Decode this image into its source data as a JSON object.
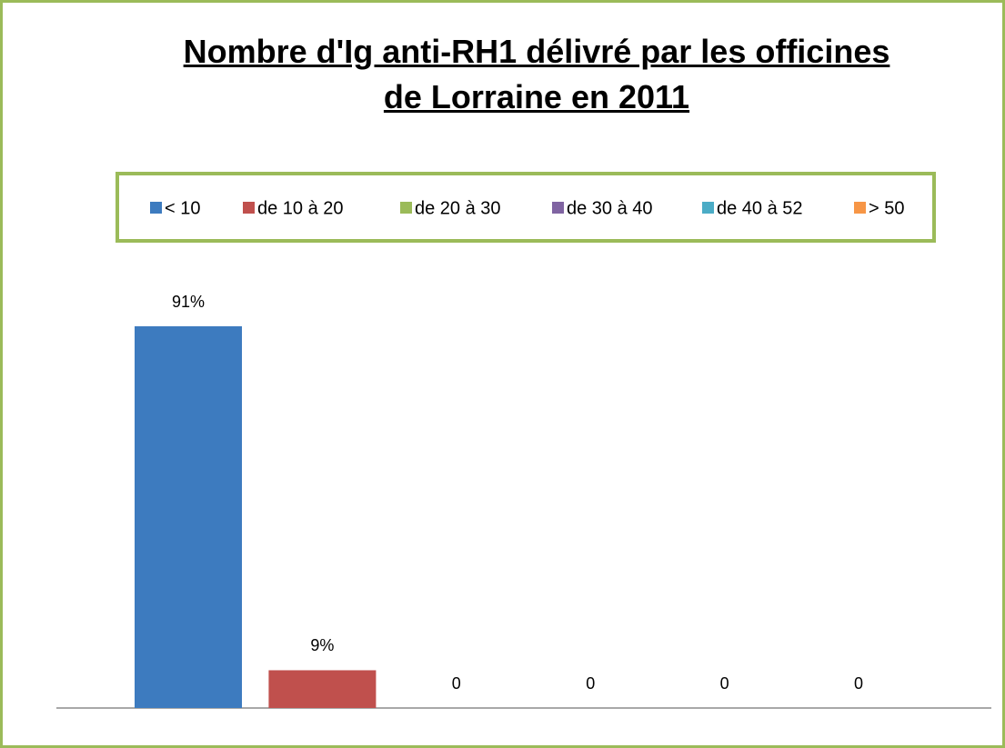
{
  "chart_data": {
    "type": "bar",
    "title": "Nombre d'Ig anti-RH1 délivré par les officines de Lorraine en 2011",
    "series": [
      {
        "name": "< 10",
        "color": "#3d7bbf",
        "values": [
          91
        ],
        "value_labels": [
          "91%"
        ]
      },
      {
        "name": "de 10 à 20",
        "color": "#c0504d",
        "values": [
          9
        ],
        "value_labels": [
          "9%"
        ]
      },
      {
        "name": "de 20 à 30",
        "color": "#9bbb59",
        "values": [
          0
        ],
        "value_labels": [
          "0"
        ]
      },
      {
        "name": "de 30 à 40",
        "color": "#8064a2",
        "values": [
          0
        ],
        "value_labels": [
          "0"
        ]
      },
      {
        "name": "de 40 à 52",
        "color": "#4bacc6",
        "values": [
          0
        ],
        "value_labels": [
          "0"
        ]
      },
      {
        "name": "> 50",
        "color": "#f79646",
        "values": [
          0
        ],
        "value_labels": [
          "0"
        ]
      }
    ],
    "legend": "top"
  }
}
